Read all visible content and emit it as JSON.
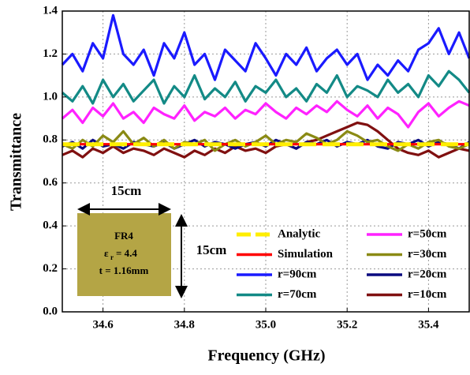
{
  "chart_data": {
    "type": "line",
    "x_label": "Frequency (GHz)",
    "y_label": "Transmittance",
    "xlim": [
      34.5,
      35.5
    ],
    "ylim": [
      0,
      1.4
    ],
    "xticks": [
      34.6,
      34.8,
      {
        "value": 35.0,
        "label": "35.0"
      },
      35.2,
      35.4
    ],
    "yticks": [
      {
        "value": 0,
        "label": "0.0"
      },
      0.2,
      0.4,
      0.6,
      0.8,
      {
        "value": 1.0,
        "label": "1.0"
      },
      1.2,
      1.4
    ],
    "grid": true,
    "legend_position": "lower right",
    "x": [
      34.5,
      34.525,
      34.55,
      34.575,
      34.6,
      34.625,
      34.65,
      34.675,
      34.7,
      34.725,
      34.75,
      34.775,
      34.8,
      34.825,
      34.85,
      34.875,
      34.9,
      34.925,
      34.95,
      34.975,
      35.0,
      35.025,
      35.05,
      35.075,
      35.1,
      35.125,
      35.15,
      35.175,
      35.2,
      35.225,
      35.25,
      35.275,
      35.3,
      35.325,
      35.35,
      35.375,
      35.4,
      35.425,
      35.45,
      35.475,
      35.5
    ],
    "series": [
      {
        "name": "Analytic",
        "color": "#ffee00",
        "dashed": true,
        "values": [
          0.78,
          0.78,
          0.78,
          0.78,
          0.78,
          0.78,
          0.78,
          0.78,
          0.78,
          0.78,
          0.78,
          0.78,
          0.78,
          0.78,
          0.78,
          0.78,
          0.78,
          0.78,
          0.78,
          0.78,
          0.78,
          0.78,
          0.78,
          0.78,
          0.78,
          0.78,
          0.78,
          0.78,
          0.78,
          0.78,
          0.78,
          0.78,
          0.78,
          0.78,
          0.78,
          0.78,
          0.78,
          0.78,
          0.78,
          0.78,
          0.78
        ]
      },
      {
        "name": "Simulation",
        "color": "#ff0000",
        "dashed": false,
        "values": [
          0.78,
          0.78,
          0.78,
          0.78,
          0.78,
          0.78,
          0.78,
          0.78,
          0.78,
          0.78,
          0.78,
          0.78,
          0.78,
          0.78,
          0.78,
          0.78,
          0.78,
          0.78,
          0.78,
          0.78,
          0.78,
          0.78,
          0.78,
          0.78,
          0.78,
          0.78,
          0.78,
          0.78,
          0.78,
          0.78,
          0.78,
          0.78,
          0.78,
          0.78,
          0.78,
          0.78,
          0.78,
          0.78,
          0.78,
          0.78,
          0.78
        ]
      },
      {
        "name": "r=90cm",
        "color": "#1a1aff",
        "dashed": false,
        "values": [
          1.15,
          1.2,
          1.12,
          1.25,
          1.18,
          1.38,
          1.2,
          1.15,
          1.22,
          1.1,
          1.25,
          1.18,
          1.3,
          1.15,
          1.2,
          1.08,
          1.22,
          1.17,
          1.12,
          1.25,
          1.18,
          1.1,
          1.2,
          1.15,
          1.23,
          1.12,
          1.18,
          1.22,
          1.15,
          1.2,
          1.08,
          1.15,
          1.1,
          1.17,
          1.12,
          1.22,
          1.25,
          1.32,
          1.2,
          1.3,
          1.18
        ]
      },
      {
        "name": "r=70cm",
        "color": "#138a86",
        "dashed": false,
        "values": [
          1.02,
          0.98,
          1.05,
          0.97,
          1.08,
          1.0,
          1.06,
          0.98,
          1.03,
          1.08,
          0.97,
          1.05,
          1.0,
          1.1,
          0.99,
          1.04,
          1.0,
          1.07,
          0.98,
          1.05,
          1.02,
          1.08,
          1.0,
          1.04,
          0.98,
          1.06,
          1.02,
          1.1,
          1.0,
          1.05,
          1.03,
          1.0,
          1.08,
          1.02,
          1.06,
          1.0,
          1.1,
          1.05,
          1.12,
          1.08,
          1.02
        ]
      },
      {
        "name": "r=50cm",
        "color": "#ff22ff",
        "dashed": false,
        "values": [
          0.9,
          0.94,
          0.88,
          0.95,
          0.91,
          0.97,
          0.9,
          0.93,
          0.88,
          0.95,
          0.92,
          0.9,
          0.96,
          0.89,
          0.93,
          0.91,
          0.95,
          0.9,
          0.94,
          0.92,
          0.97,
          0.93,
          0.9,
          0.95,
          0.92,
          0.96,
          0.93,
          0.98,
          0.94,
          0.91,
          0.96,
          0.9,
          0.95,
          0.92,
          0.86,
          0.93,
          0.97,
          0.91,
          0.95,
          0.98,
          0.96
        ]
      },
      {
        "name": "r=30cm",
        "color": "#8a8a14",
        "dashed": false,
        "values": [
          0.78,
          0.76,
          0.8,
          0.77,
          0.82,
          0.79,
          0.84,
          0.78,
          0.81,
          0.77,
          0.8,
          0.76,
          0.79,
          0.78,
          0.8,
          0.75,
          0.78,
          0.8,
          0.77,
          0.79,
          0.82,
          0.78,
          0.8,
          0.79,
          0.83,
          0.81,
          0.78,
          0.8,
          0.84,
          0.82,
          0.79,
          0.8,
          0.77,
          0.75,
          0.78,
          0.76,
          0.79,
          0.8,
          0.77,
          0.76,
          0.78
        ]
      },
      {
        "name": "r=20cm",
        "color": "#0a0a80",
        "dashed": false,
        "values": [
          0.77,
          0.79,
          0.76,
          0.8,
          0.77,
          0.78,
          0.76,
          0.79,
          0.78,
          0.77,
          0.79,
          0.76,
          0.78,
          0.8,
          0.77,
          0.79,
          0.78,
          0.76,
          0.78,
          0.79,
          0.77,
          0.8,
          0.78,
          0.76,
          0.79,
          0.78,
          0.8,
          0.77,
          0.79,
          0.78,
          0.8,
          0.77,
          0.76,
          0.79,
          0.78,
          0.8,
          0.77,
          0.79,
          0.78,
          0.76,
          0.79
        ]
      },
      {
        "name": "r=10cm",
        "color": "#801010",
        "dashed": false,
        "values": [
          0.73,
          0.75,
          0.72,
          0.76,
          0.74,
          0.77,
          0.74,
          0.76,
          0.75,
          0.73,
          0.76,
          0.74,
          0.72,
          0.75,
          0.73,
          0.76,
          0.74,
          0.77,
          0.75,
          0.76,
          0.74,
          0.77,
          0.78,
          0.76,
          0.79,
          0.8,
          0.82,
          0.84,
          0.86,
          0.88,
          0.87,
          0.84,
          0.8,
          0.76,
          0.74,
          0.73,
          0.75,
          0.72,
          0.74,
          0.76,
          0.75
        ]
      }
    ],
    "inset": {
      "width_label": "15cm",
      "height_label": "15cm",
      "material": "FR4",
      "epsilon": "ε",
      "epsilon_sub": "r",
      "epsilon_value": "= 4.4",
      "thickness": "t = 1.16mm"
    }
  }
}
